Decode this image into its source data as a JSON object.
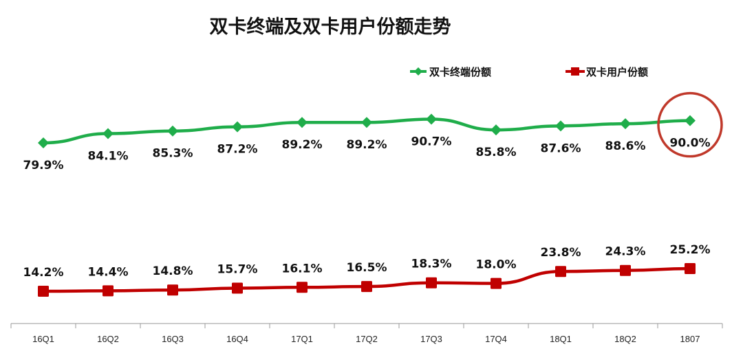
{
  "colors": {
    "green": "#1fad4a",
    "red": "#c00000",
    "highlight_ring": "#c0392b",
    "axis": "#999999",
    "text": "#111111"
  },
  "chart_data": {
    "type": "line",
    "title": "双卡终端及双卡用户份额走势",
    "xlabel": "",
    "ylabel": "",
    "unit": "%",
    "categories": [
      "16Q1",
      "16Q2",
      "16Q3",
      "16Q4",
      "17Q1",
      "17Q2",
      "17Q3",
      "17Q4",
      "18Q1",
      "18Q2",
      "1807"
    ],
    "series": [
      {
        "name": "双卡终端份额",
        "color": "#1fad4a",
        "marker": "diamond",
        "values": [
          79.9,
          84.1,
          85.3,
          87.2,
          89.2,
          89.2,
          90.7,
          85.8,
          87.6,
          88.6,
          90.0
        ],
        "labels": [
          "79.9%",
          "84.1%",
          "85.3%",
          "87.2%",
          "89.2%",
          "89.2%",
          "90.7%",
          "85.8%",
          "87.6%",
          "88.6%",
          "90.0%"
        ],
        "label_position": "below"
      },
      {
        "name": "双卡用户份额",
        "color": "#c00000",
        "marker": "square",
        "values": [
          14.2,
          14.4,
          14.8,
          15.7,
          16.1,
          16.5,
          18.3,
          18.0,
          23.8,
          24.3,
          25.2
        ],
        "labels": [
          "14.2%",
          "14.4%",
          "14.8%",
          "15.7%",
          "16.1%",
          "16.5%",
          "18.3%",
          "18.0%",
          "23.8%",
          "24.3%",
          "25.2%"
        ],
        "label_position": "above"
      }
    ],
    "legend_position": "top-right",
    "grid": false,
    "highlight": {
      "category": "1807",
      "series": "双卡终端份额",
      "shape": "circle"
    }
  }
}
